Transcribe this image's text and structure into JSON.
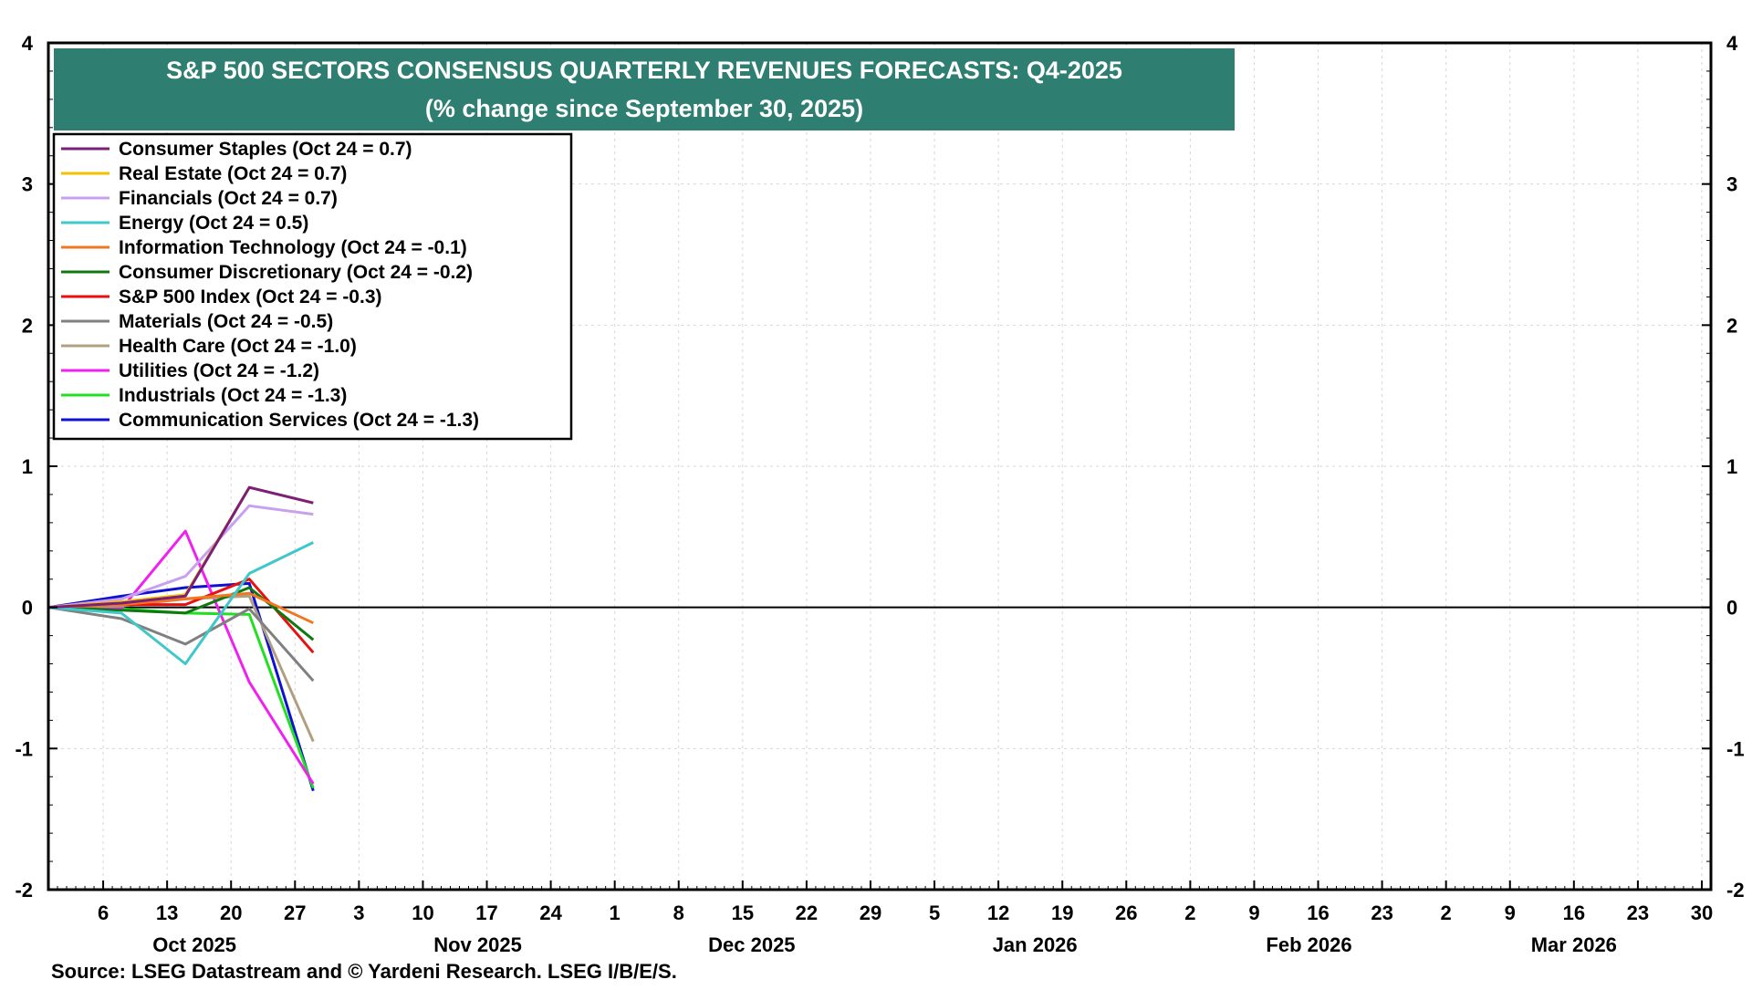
{
  "chart_data": {
    "type": "line",
    "title": "S&P 500 SECTORS CONSENSUS QUARTERLY REVENUES FORECASTS: Q4-2025",
    "subtitle": "(% change since September 30, 2025)",
    "source": "Source: LSEG Datastream and © Yardeni Research. LSEG I/B/E/S.",
    "ylim": [
      -2,
      4
    ],
    "yticks": [
      -2,
      -1,
      0,
      1,
      2,
      3,
      4
    ],
    "ytick_labels": [
      "-2",
      "-1",
      "0",
      "1",
      "2",
      "3",
      "4"
    ],
    "xlim": [
      "2025-09-30",
      "2026-03-31"
    ],
    "xticks": [
      {
        "date": "2025-10-06",
        "label": "6"
      },
      {
        "date": "2025-10-13",
        "label": "13"
      },
      {
        "date": "2025-10-20",
        "label": "20"
      },
      {
        "date": "2025-10-27",
        "label": "27"
      },
      {
        "date": "2025-11-03",
        "label": "3"
      },
      {
        "date": "2025-11-10",
        "label": "10"
      },
      {
        "date": "2025-11-17",
        "label": "17"
      },
      {
        "date": "2025-11-24",
        "label": "24"
      },
      {
        "date": "2025-12-01",
        "label": "1"
      },
      {
        "date": "2025-12-08",
        "label": "8"
      },
      {
        "date": "2025-12-15",
        "label": "15"
      },
      {
        "date": "2025-12-22",
        "label": "22"
      },
      {
        "date": "2025-12-29",
        "label": "29"
      },
      {
        "date": "2026-01-05",
        "label": "5"
      },
      {
        "date": "2026-01-12",
        "label": "12"
      },
      {
        "date": "2026-01-19",
        "label": "19"
      },
      {
        "date": "2026-01-26",
        "label": "26"
      },
      {
        "date": "2026-02-02",
        "label": "2"
      },
      {
        "date": "2026-02-09",
        "label": "9"
      },
      {
        "date": "2026-02-16",
        "label": "16"
      },
      {
        "date": "2026-02-23",
        "label": "23"
      },
      {
        "date": "2026-03-02",
        "label": "2"
      },
      {
        "date": "2026-03-09",
        "label": "9"
      },
      {
        "date": "2026-03-16",
        "label": "16"
      },
      {
        "date": "2026-03-23",
        "label": "23"
      },
      {
        "date": "2026-03-30",
        "label": "30"
      }
    ],
    "month_labels": [
      {
        "date": "2025-10-16",
        "label": "Oct 2025"
      },
      {
        "date": "2025-11-16",
        "label": "Nov 2025"
      },
      {
        "date": "2025-12-16",
        "label": "Dec 2025"
      },
      {
        "date": "2026-01-16",
        "label": "Jan 2026"
      },
      {
        "date": "2026-02-15",
        "label": "Feb 2026"
      },
      {
        "date": "2026-03-16",
        "label": "Mar 2026"
      }
    ],
    "grid": true,
    "legend_position": "top-left",
    "x": [
      "2025-09-30",
      "2025-10-08",
      "2025-10-15",
      "2025-10-22",
      "2025-10-29"
    ],
    "series": [
      {
        "name": "Consumer Staples (Oct 24 = 0.7)",
        "color": "#7B1F7B",
        "values": [
          0,
          0.03,
          0.08,
          0.85,
          0.74
        ]
      },
      {
        "name": "Real Estate (Oct 24 = 0.7)",
        "color": "#F2C200",
        "values": [
          0,
          0.04,
          0.09,
          0.85,
          0.74
        ]
      },
      {
        "name": "Financials (Oct 24 = 0.7)",
        "color": "#C8A0F0",
        "values": [
          0,
          0.06,
          0.22,
          0.72,
          0.66
        ]
      },
      {
        "name": "Energy (Oct 24 = 0.5)",
        "color": "#40C8C8",
        "values": [
          0,
          -0.04,
          -0.4,
          0.24,
          0.46
        ]
      },
      {
        "name": "Information Technology (Oct 24 = -0.1)",
        "color": "#F07820",
        "values": [
          0,
          0.02,
          0.06,
          0.1,
          -0.11
        ]
      },
      {
        "name": "Consumer Discretionary (Oct 24 = -0.2)",
        "color": "#107810",
        "values": [
          0,
          -0.02,
          -0.04,
          0.14,
          -0.23
        ]
      },
      {
        "name": "S&P 500 Index (Oct 24 = -0.3)",
        "color": "#E81010",
        "values": [
          0,
          0.02,
          0.02,
          0.2,
          -0.32
        ]
      },
      {
        "name": "Materials (Oct 24 = -0.5)",
        "color": "#808080",
        "values": [
          0,
          -0.08,
          -0.26,
          -0.01,
          -0.52
        ]
      },
      {
        "name": "Health Care (Oct 24 = -1.0)",
        "color": "#B0A080",
        "values": [
          0,
          0.01,
          0.06,
          0.08,
          -0.95
        ]
      },
      {
        "name": "Utilities (Oct 24 = -1.2)",
        "color": "#F020F0",
        "values": [
          0,
          -0.01,
          0.54,
          -0.53,
          -1.25
        ]
      },
      {
        "name": "Industrials (Oct 24 = -1.3)",
        "color": "#20E020",
        "values": [
          0,
          -0.01,
          -0.04,
          -0.05,
          -1.28
        ]
      },
      {
        "name": "Communication Services (Oct 24 = -1.3)",
        "color": "#1010D0",
        "values": [
          0,
          0.08,
          0.14,
          0.17,
          -1.3
        ]
      }
    ]
  }
}
